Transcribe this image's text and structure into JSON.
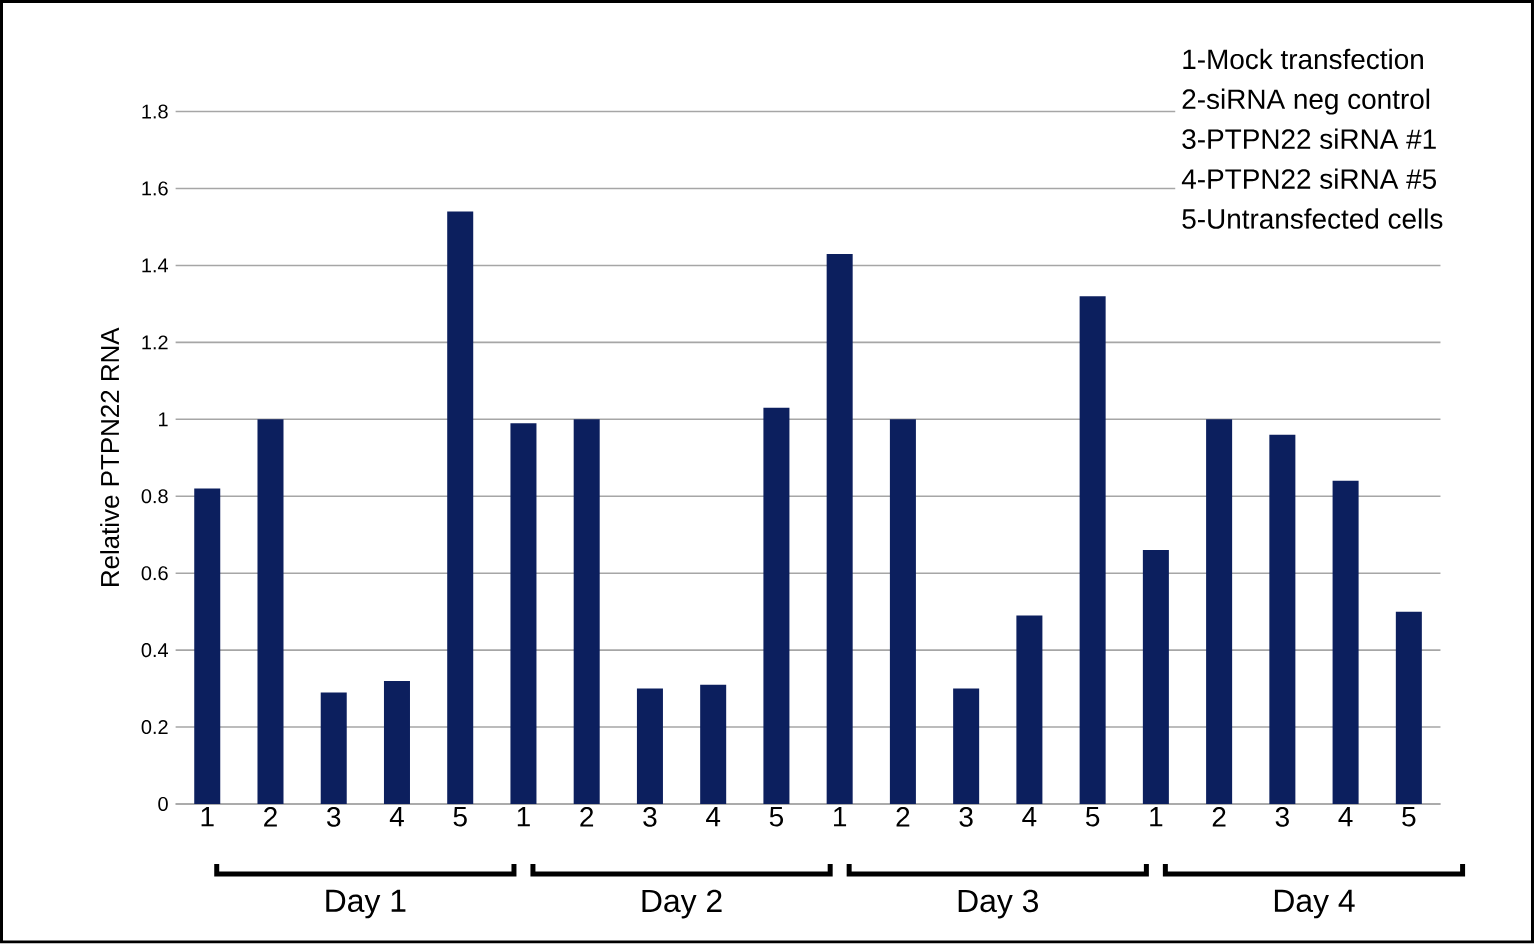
{
  "chart_data": {
    "type": "bar",
    "ylabel": "Relative PTPN22 RNA",
    "categories": [
      "1",
      "2",
      "3",
      "4",
      "5",
      "1",
      "2",
      "3",
      "4",
      "5",
      "1",
      "2",
      "3",
      "4",
      "5",
      "1",
      "2",
      "3",
      "4",
      "5"
    ],
    "values": [
      0.82,
      1.0,
      0.29,
      0.32,
      1.54,
      0.99,
      1.0,
      0.3,
      0.31,
      1.03,
      1.43,
      1.0,
      0.3,
      0.49,
      1.32,
      0.66,
      1.0,
      0.96,
      0.84,
      0.5
    ],
    "color": "#0c1f5e",
    "ylim": [
      0,
      1.8
    ],
    "yticks": [
      0,
      0.2,
      0.4,
      0.6,
      0.8,
      1,
      1.2,
      1.4,
      1.6,
      1.8
    ],
    "grid": "y",
    "annotations": [
      "1-Mock transfection",
      "2-siRNA neg control",
      "3-PTPN22 siRNA #1",
      "4-PTPN22 siRNA #5",
      "5-Untransfected cells",
      "Day 1",
      "Day 2",
      "Day 3",
      "Day 4"
    ]
  }
}
